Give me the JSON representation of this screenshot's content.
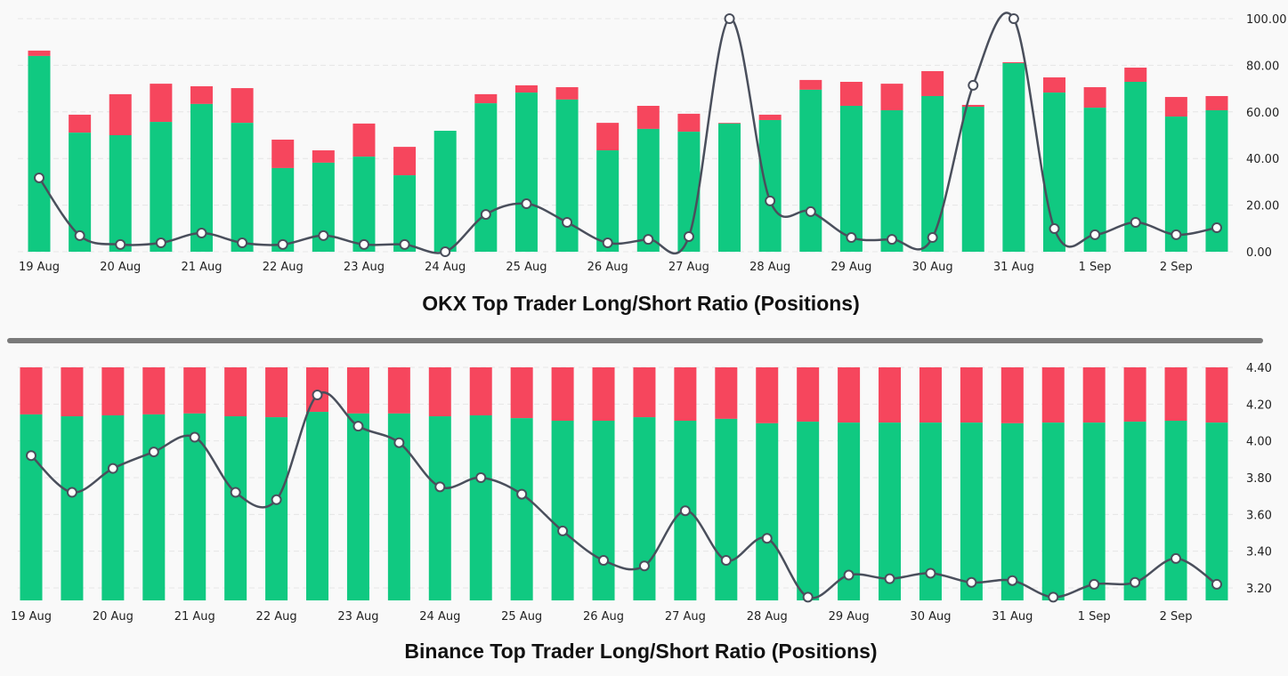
{
  "colors": {
    "long": "#10c981",
    "short": "#f6465d",
    "line": "#4a4f5c",
    "grid": "#e6e6e6"
  },
  "chart_data": [
    {
      "type": "bar",
      "stacked": true,
      "title": "OKX Top Trader Long/Short Ratio (Positions)",
      "x_tick_labels": [
        "19 Aug",
        "20 Aug",
        "21 Aug",
        "22 Aug",
        "23 Aug",
        "24 Aug",
        "25 Aug",
        "26 Aug",
        "27 Aug",
        "28 Aug",
        "29 Aug",
        "30 Aug",
        "31 Aug",
        "1 Sep",
        "2 Sep"
      ],
      "right_axis": {
        "ticks": [
          "100.00",
          "80.00",
          "60.00",
          "40.00",
          "20.00",
          "0.00"
        ],
        "range": [
          0,
          100
        ]
      },
      "series": [
        {
          "kind": "bar",
          "color": "#10c981",
          "values": [
            84.0,
            51.1,
            50.0,
            55.7,
            63.4,
            55.3,
            35.9,
            38.2,
            40.8,
            32.8,
            51.9,
            63.7,
            68.3,
            65.3,
            43.5,
            52.7,
            51.5,
            55.0,
            56.5,
            69.5,
            62.6,
            60.7,
            66.8,
            62.2,
            80.9,
            68.3,
            61.8,
            72.9,
            58.0,
            60.7
          ]
        },
        {
          "kind": "bar",
          "color": "#f6465d",
          "values": [
            2.3,
            7.7,
            17.6,
            16.4,
            7.6,
            14.9,
            12.2,
            5.3,
            14.2,
            12.2,
            0,
            3.9,
            3.1,
            5.3,
            11.8,
            9.9,
            7.7,
            0.3,
            2.3,
            4.2,
            10.3,
            11.4,
            10.7,
            0.8,
            0.4,
            6.5,
            8.8,
            6.1,
            8.4,
            6.1
          ]
        },
        {
          "kind": "line",
          "axis": "right",
          "color": "#4a4f5c",
          "values": [
            31.7,
            6.9,
            3.1,
            3.8,
            8.0,
            3.8,
            3.1,
            6.9,
            3.1,
            3.1,
            0,
            16.0,
            20.6,
            12.6,
            3.8,
            5.3,
            6.5,
            100,
            21.8,
            17.2,
            6.1,
            5.3,
            6.1,
            71.4,
            100,
            9.9,
            7.3,
            12.6,
            7.3,
            10.3
          ]
        }
      ]
    },
    {
      "type": "bar",
      "stacked": true,
      "percent": true,
      "title": "Binance Top Trader Long/Short Ratio (Positions)",
      "x_tick_labels": [
        "19 Aug",
        "20 Aug",
        "21 Aug",
        "22 Aug",
        "23 Aug",
        "24 Aug",
        "25 Aug",
        "26 Aug",
        "27 Aug",
        "28 Aug",
        "29 Aug",
        "30 Aug",
        "31 Aug",
        "1 Sep",
        "2 Sep"
      ],
      "right_axis": {
        "ticks": [
          "4.40",
          "4.20",
          "4.00",
          "3.80",
          "3.60",
          "3.40",
          "3.20"
        ],
        "range": [
          3.13,
          4.4
        ]
      },
      "series": [
        {
          "kind": "bar",
          "name": "long %",
          "color": "#10c981",
          "values": [
            79.8,
            79.0,
            79.4,
            79.8,
            80.2,
            79.0,
            78.6,
            80.9,
            80.2,
            80.2,
            79.0,
            79.4,
            78.2,
            77.1,
            77.1,
            78.6,
            77.1,
            77.9,
            76.0,
            76.7,
            76.3,
            76.3,
            76.3,
            76.3,
            76.0,
            76.3,
            76.3,
            76.7,
            77.1,
            76.3
          ]
        },
        {
          "kind": "line",
          "axis": "right",
          "color": "#4a4f5c",
          "values": [
            3.92,
            3.72,
            3.85,
            3.94,
            4.02,
            3.72,
            3.68,
            4.25,
            4.08,
            3.99,
            3.75,
            3.8,
            3.71,
            3.51,
            3.35,
            3.32,
            3.62,
            3.35,
            3.47,
            3.15,
            3.27,
            3.25,
            3.28,
            3.23,
            3.24,
            3.15,
            3.22,
            3.23,
            3.36,
            3.22
          ]
        }
      ]
    }
  ]
}
